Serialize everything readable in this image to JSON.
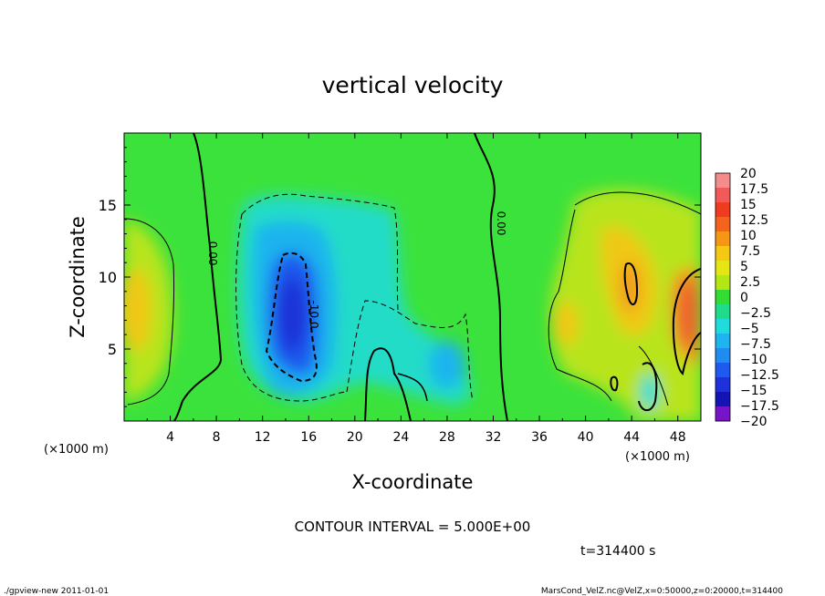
{
  "chart_data": {
    "type": "heatmap",
    "title": "vertical velocity",
    "xlabel": "X-coordinate",
    "ylabel": "Z-coordinate",
    "x_unit": "(×1000 m)",
    "z_unit": "(×1000 m)",
    "xlim": [
      0,
      50
    ],
    "ylim": [
      0,
      20
    ],
    "x_ticks": [
      "4",
      "8",
      "12",
      "16",
      "20",
      "24",
      "28",
      "32",
      "36",
      "40",
      "44",
      "48"
    ],
    "y_ticks": [
      "5",
      "10",
      "15"
    ],
    "contour_labels": [
      "0.00",
      "0.00",
      "-10.0"
    ],
    "colorbar": {
      "labels": [
        "20",
        "17.5",
        "15",
        "12.5",
        "10",
        "7.5",
        "5",
        "2.5",
        "0",
        "−2.5",
        "−5",
        "−7.5",
        "−10",
        "−12.5",
        "−15",
        "−17.5",
        "−20"
      ],
      "colors": [
        "#f58c8c",
        "#f25a5a",
        "#f03c1e",
        "#f5641e",
        "#f59614",
        "#f5c814",
        "#e6e614",
        "#b4e614",
        "#32dc32",
        "#1edc8c",
        "#1edcdc",
        "#1eb4f0",
        "#1e8cf0",
        "#1e5af0",
        "#1e32dc",
        "#1414b4",
        "#7814c8"
      ]
    },
    "features": [
      {
        "type": "downdraft",
        "x": 15.5,
        "z": 8,
        "min": -15
      },
      {
        "type": "downdraft",
        "x": 28,
        "z": 4,
        "min": -7.5
      },
      {
        "type": "updraft",
        "x": 0.5,
        "z": 8,
        "max": 10
      },
      {
        "type": "updraft",
        "x": 49,
        "z": 8,
        "max": 12.5
      },
      {
        "type": "updraft",
        "x": 43,
        "z": 10,
        "max": 10
      },
      {
        "type": "updraft",
        "x": 39,
        "z": 7,
        "max": 7.5
      }
    ]
  },
  "annotations": {
    "contour_interval": "CONTOUR INTERVAL = 5.000E+00",
    "time": "t=314400 s",
    "footer_left": "./gpview-new  2011-01-01",
    "footer_right": "MarsCond_VelZ.nc@VelZ,x=0:50000,z=0:20000,t=314400"
  }
}
